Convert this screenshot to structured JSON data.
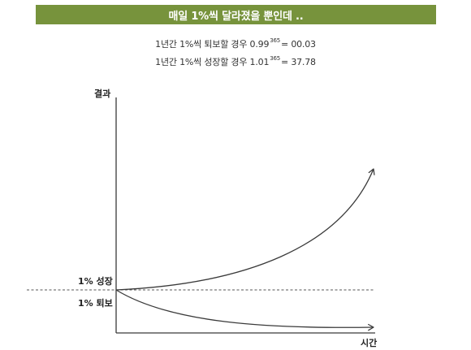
{
  "title": "매일 1%씩 달라졌을 뿐인데 ..",
  "formulas": [
    {
      "prefix": "1년간 1%씩 퇴보할 경우 0.99",
      "exponent": "365",
      "result": "= 00.03"
    },
    {
      "prefix": "1년간 1%씩 성장할 경우 1.01",
      "exponent": "365",
      "result": "= 37.78"
    }
  ],
  "axes": {
    "y_label": "결과",
    "x_label": "시간"
  },
  "curves": {
    "growth_label": "1% 성장",
    "decline_label": "1% 퇴보"
  },
  "colors": {
    "banner": "#77933c",
    "line": "#3a3a3a",
    "dashed": "#555555"
  }
}
